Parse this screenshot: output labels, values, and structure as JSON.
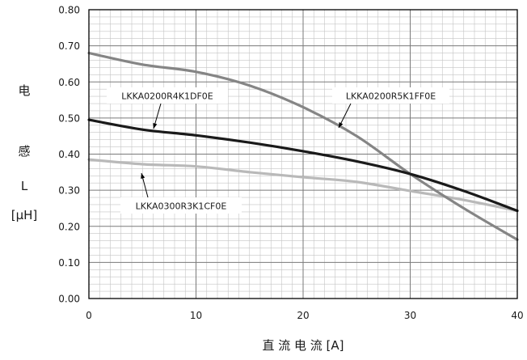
{
  "chart_data": {
    "type": "line",
    "title": "",
    "xlabel": "直 流 电 流 [A]",
    "ylabel_lines": [
      "电",
      "感",
      "L",
      "[µH]"
    ],
    "xlim": [
      0,
      40
    ],
    "ylim": [
      0,
      0.8
    ],
    "x_major_ticks": [
      "0",
      "10",
      "20",
      "30",
      "40"
    ],
    "x_major_values": [
      0,
      10,
      20,
      30,
      40
    ],
    "y_major_ticks": [
      "0.00",
      "0.10",
      "0.20",
      "0.30",
      "0.40",
      "0.50",
      "0.60",
      "0.70",
      "0.80"
    ],
    "y_major_values": [
      0,
      0.1,
      0.2,
      0.3,
      0.4,
      0.5,
      0.6,
      0.7,
      0.8
    ],
    "x_minor_step": 1,
    "y_minor_step": 0.02,
    "grid": true,
    "legend": "none",
    "series": [
      {
        "name": "LKKA0200R4K1DF0E",
        "color": "#1a1a1a",
        "x": [
          0,
          5,
          10,
          15,
          20,
          25,
          30,
          35,
          40
        ],
        "y": [
          0.495,
          0.468,
          0.452,
          0.432,
          0.408,
          0.38,
          0.345,
          0.298,
          0.243
        ]
      },
      {
        "name": "LKKA0200R5K1FF0E",
        "color": "#858585",
        "x": [
          0,
          5,
          10,
          15,
          20,
          25,
          30,
          35,
          40
        ],
        "y": [
          0.68,
          0.648,
          0.628,
          0.59,
          0.53,
          0.45,
          0.345,
          0.25,
          0.163
        ]
      },
      {
        "name": "LKKA0300R3K1CF0E",
        "color": "#b9b9b9",
        "x": [
          0,
          5,
          10,
          15,
          20,
          25,
          30,
          35,
          40
        ],
        "y": [
          0.385,
          0.372,
          0.366,
          0.35,
          0.336,
          0.323,
          0.298,
          0.273,
          0.243
        ]
      }
    ]
  }
}
